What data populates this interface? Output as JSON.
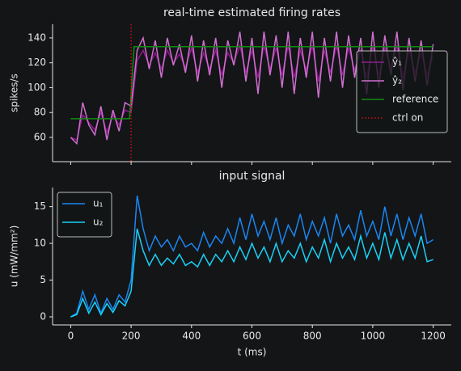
{
  "chart_data": [
    {
      "type": "line",
      "title": "real-time estimated firing rates",
      "ylabel": "spikes/s",
      "x": [
        0,
        20,
        40,
        60,
        80,
        100,
        120,
        140,
        160,
        180,
        200,
        220,
        240,
        260,
        280,
        300,
        320,
        340,
        360,
        380,
        400,
        420,
        440,
        460,
        480,
        500,
        520,
        540,
        560,
        580,
        600,
        620,
        640,
        660,
        680,
        700,
        720,
        740,
        760,
        780,
        800,
        820,
        840,
        860,
        880,
        900,
        920,
        940,
        960,
        980,
        1000,
        1020,
        1040,
        1060,
        1080,
        1100,
        1120,
        1140,
        1160,
        1180,
        1200
      ],
      "series": [
        {
          "name": "ŷ₁",
          "color": "#8e1c8e",
          "values": [
            60,
            58,
            78,
            72,
            66,
            80,
            64,
            78,
            70,
            82,
            80,
            122,
            130,
            118,
            128,
            115,
            130,
            120,
            127,
            116,
            132,
            112,
            128,
            115,
            130,
            110,
            128,
            120,
            134,
            112,
            130,
            108,
            134,
            115,
            132,
            110,
            134,
            108,
            130,
            114,
            134,
            105,
            130,
            112,
            134,
            110,
            132,
            114,
            130,
            108,
            134,
            110,
            132,
            116,
            134,
            108,
            130,
            112,
            128,
            110,
            126
          ]
        },
        {
          "name": "ŷ₂",
          "color": "#cf6fcf",
          "values": [
            60,
            55,
            88,
            70,
            62,
            85,
            58,
            82,
            65,
            88,
            85,
            130,
            140,
            115,
            138,
            108,
            140,
            118,
            135,
            112,
            142,
            105,
            138,
            110,
            140,
            100,
            138,
            118,
            145,
            105,
            140,
            95,
            145,
            110,
            142,
            100,
            145,
            95,
            140,
            108,
            145,
            92,
            140,
            105,
            145,
            100,
            142,
            108,
            140,
            95,
            145,
            100,
            142,
            110,
            145,
            98,
            140,
            105,
            138,
            102,
            135
          ]
        },
        {
          "name": "reference",
          "color": "#138a13",
          "x": [
            0,
            195,
            210,
            1200
          ],
          "values": [
            75,
            75,
            133,
            133
          ]
        }
      ],
      "vlines": [
        {
          "name": "ctrl on",
          "color": "#d01010",
          "x": 200
        }
      ],
      "xlim": [
        -60,
        1260
      ],
      "ylim": [
        40.5,
        151
      ],
      "xticks": [
        0,
        200,
        400,
        600,
        800,
        1000,
        1200
      ],
      "yticks": [
        60,
        80,
        100,
        120,
        140
      ],
      "legend": "upper right"
    },
    {
      "type": "line",
      "title": "input signal",
      "ylabel": "u (mW/mm²)",
      "xlabel": "t (ms)",
      "x": [
        0,
        20,
        40,
        60,
        80,
        100,
        120,
        140,
        160,
        180,
        200,
        220,
        240,
        260,
        280,
        300,
        320,
        340,
        360,
        380,
        400,
        420,
        440,
        460,
        480,
        500,
        520,
        540,
        560,
        580,
        600,
        620,
        640,
        660,
        680,
        700,
        720,
        740,
        760,
        780,
        800,
        820,
        840,
        860,
        880,
        900,
        920,
        940,
        960,
        980,
        1000,
        1020,
        1040,
        1060,
        1080,
        1100,
        1120,
        1140,
        1160,
        1180,
        1200
      ],
      "series": [
        {
          "name": "u₁",
          "color": "#1a86f0",
          "values": [
            0,
            0.5,
            3.5,
            1,
            3,
            0.5,
            2.5,
            1,
            3,
            2,
            5,
            16.5,
            12,
            9,
            11,
            9.5,
            10.5,
            9,
            11,
            9.5,
            10,
            9,
            11.5,
            9.5,
            11,
            10,
            12,
            10,
            13.5,
            10.5,
            14,
            11,
            13,
            10.5,
            13.5,
            10,
            12.5,
            11,
            14,
            10.5,
            13,
            11,
            13.5,
            10,
            14,
            11,
            12.5,
            10.5,
            14.5,
            11,
            13,
            10.5,
            15,
            11,
            14,
            10.5,
            13.5,
            11,
            14,
            10,
            10.5
          ]
        },
        {
          "name": "u₂",
          "color": "#18d2f8",
          "values": [
            0,
            0.3,
            2.5,
            0.5,
            2,
            0.3,
            1.8,
            0.6,
            2.2,
            1.5,
            3.5,
            12,
            9,
            7,
            8.5,
            7,
            8,
            7.2,
            8.5,
            7,
            7.5,
            6.8,
            8.5,
            7,
            8.5,
            7.5,
            9,
            7.5,
            9.5,
            7.8,
            10,
            8,
            9.5,
            7.5,
            10,
            7.5,
            9,
            8,
            10,
            7.5,
            9.5,
            8,
            10.5,
            7.5,
            10,
            8,
            9.5,
            7.8,
            11,
            8,
            10,
            7.8,
            11.5,
            8,
            10.5,
            7.8,
            10,
            8,
            11,
            7.5,
            7.8
          ]
        }
      ],
      "xlim": [
        -60,
        1260
      ],
      "ylim": [
        -1.1,
        17.6
      ],
      "xticks": [
        0,
        200,
        400,
        600,
        800,
        1000,
        1200
      ],
      "yticks": [
        0,
        5,
        10,
        15
      ],
      "legend": "upper left"
    }
  ]
}
